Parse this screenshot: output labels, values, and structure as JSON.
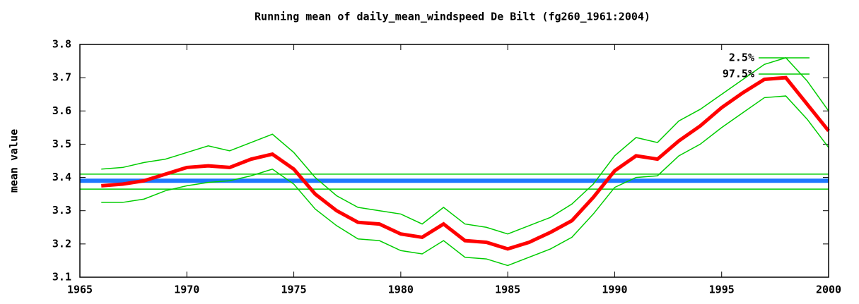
{
  "chart_data": {
    "type": "line",
    "title": "Running mean of daily_mean_windspeed De Bilt (fg260_1961:2004)",
    "y_label": "mean value",
    "x": [
      1966,
      1967,
      1968,
      1969,
      1970,
      1971,
      1972,
      1973,
      1974,
      1975,
      1976,
      1977,
      1978,
      1979,
      1980,
      1981,
      1982,
      1983,
      1984,
      1985,
      1986,
      1987,
      1988,
      1989,
      1990,
      1991,
      1992,
      1993,
      1994,
      1995,
      1996,
      1997,
      1998,
      1999,
      2000
    ],
    "series": [
      {
        "color": "#ff0000",
        "values": [
          3.375,
          3.38,
          3.39,
          3.41,
          3.43,
          3.435,
          3.43,
          3.455,
          3.47,
          3.425,
          3.35,
          3.3,
          3.265,
          3.26,
          3.23,
          3.22,
          3.26,
          3.21,
          3.205,
          3.185,
          3.205,
          3.235,
          3.27,
          3.34,
          3.42,
          3.465,
          3.455,
          3.51,
          3.555,
          3.61,
          3.655,
          3.695,
          3.7,
          3.62,
          3.54
        ]
      },
      {
        "name": "2.5%",
        "color": "#00cc00",
        "values": [
          3.325,
          3.325,
          3.335,
          3.36,
          3.375,
          3.385,
          3.39,
          3.405,
          3.425,
          3.38,
          3.305,
          3.255,
          3.215,
          3.21,
          3.18,
          3.17,
          3.21,
          3.16,
          3.155,
          3.135,
          3.16,
          3.185,
          3.22,
          3.29,
          3.37,
          3.4,
          3.405,
          3.465,
          3.5,
          3.55,
          3.595,
          3.64,
          3.645,
          3.575,
          3.49
        ]
      },
      {
        "name": "97.5%",
        "color": "#00cc00",
        "values": [
          3.425,
          3.43,
          3.445,
          3.455,
          3.475,
          3.495,
          3.48,
          3.505,
          3.53,
          3.475,
          3.4,
          3.345,
          3.31,
          3.3,
          3.29,
          3.26,
          3.31,
          3.26,
          3.25,
          3.23,
          3.255,
          3.28,
          3.32,
          3.38,
          3.465,
          3.52,
          3.505,
          3.57,
          3.605,
          3.65,
          3.695,
          3.74,
          3.76,
          3.69,
          3.6
        ]
      }
    ],
    "reference_lines": [
      {
        "value": 3.41,
        "color": "#00cc00"
      },
      {
        "value": 3.365,
        "color": "#00cc00"
      },
      {
        "value": 3.39,
        "color": "#1e78ff"
      }
    ],
    "xlim": [
      1965,
      2000
    ],
    "xticks": [
      1965,
      1970,
      1975,
      1980,
      1985,
      1990,
      1995,
      2000
    ],
    "ylim": [
      3.1,
      3.8
    ],
    "yticks": [
      3.1,
      3.2,
      3.3,
      3.4,
      3.5,
      3.6,
      3.7,
      3.8
    ]
  }
}
